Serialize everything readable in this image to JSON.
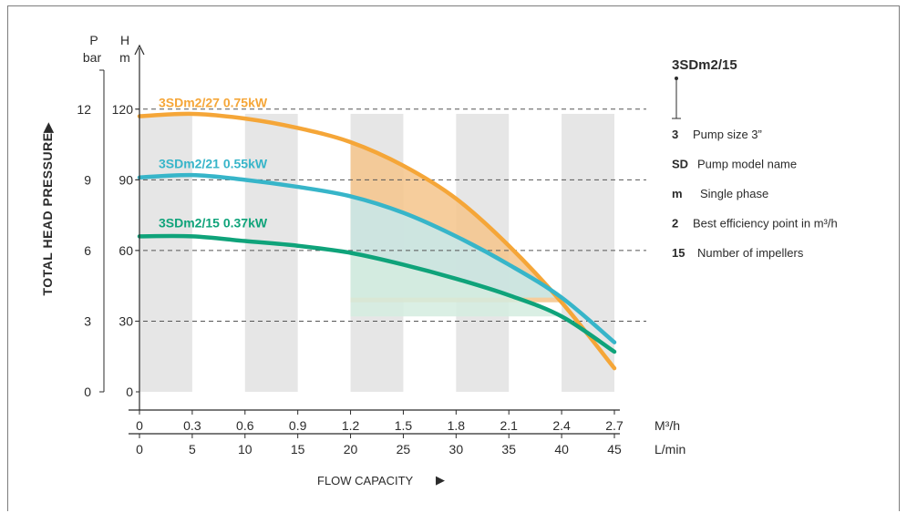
{
  "chart_data": {
    "type": "line",
    "x_flow_m3h": {
      "label": "M³/h",
      "ticks": [
        "0",
        "0.3",
        "0.6",
        "0.9",
        "1.2",
        "1.5",
        "1.8",
        "2.1",
        "2.4",
        "2.7"
      ],
      "range": [
        0,
        2.7
      ]
    },
    "x_flow_lmin": {
      "label": "L/min",
      "ticks": [
        "0",
        "5",
        "10",
        "15",
        "20",
        "25",
        "30",
        "35",
        "40",
        "45"
      ],
      "range": [
        0,
        45
      ]
    },
    "y_head_m": {
      "label_top": "H",
      "label_unit": "m",
      "ticks": [
        "0",
        "30",
        "60",
        "90",
        "120"
      ],
      "range": [
        0,
        135
      ]
    },
    "y_pressure_bar": {
      "label_top": "P",
      "label_unit": "bar",
      "ticks": [
        "0",
        "3",
        "6",
        "9",
        "12"
      ],
      "range": [
        0,
        13.5
      ]
    },
    "ylabel": "TOTAL HEAD PRESSURE",
    "xlabel": "FLOW CAPACITY",
    "dashed_gridlines_m": [
      30,
      60,
      90,
      120
    ],
    "shaded_columns_m3h": [
      [
        0,
        0.3
      ],
      [
        0.6,
        0.9
      ],
      [
        1.2,
        1.5
      ],
      [
        1.8,
        2.1
      ],
      [
        2.4,
        2.7
      ]
    ],
    "series": [
      {
        "name": "3SDm2/27 0.75kW",
        "color": "#f5a638",
        "x": [
          0,
          0.3,
          0.6,
          0.9,
          1.2,
          1.5,
          1.8,
          2.1,
          2.4,
          2.7
        ],
        "y": [
          117,
          118,
          116,
          112,
          106,
          96,
          82,
          62,
          38,
          10
        ],
        "efficiency_band": {
          "from_x": 1.2,
          "to_x": 2.4,
          "color": "#f5c48b"
        }
      },
      {
        "name": "3SDm2/21 0.55kW",
        "color": "#37b5c9",
        "x": [
          0,
          0.3,
          0.6,
          0.9,
          1.2,
          1.5,
          1.8,
          2.1,
          2.4,
          2.7
        ],
        "y": [
          91,
          92,
          90,
          87,
          83,
          76,
          66,
          54,
          40,
          21
        ],
        "efficiency_band": {
          "from_x": 1.2,
          "to_x": 2.4,
          "color": "#c6e9ec"
        }
      },
      {
        "name": "3SDm2/15 0.37kW",
        "color": "#0fa37a",
        "x": [
          0,
          0.3,
          0.6,
          0.9,
          1.2,
          1.5,
          1.8,
          2.1,
          2.4,
          2.7
        ],
        "y": [
          66,
          66,
          64,
          62,
          59,
          54,
          48,
          41,
          32,
          17
        ],
        "efficiency_band": {
          "from_x": 1.2,
          "to_x": 2.4,
          "color": "#d4ecdf"
        }
      }
    ]
  },
  "legend": {
    "title": "3SDm2/15",
    "items": [
      {
        "code": "3",
        "desc": "Pump size 3”"
      },
      {
        "code": "SD",
        "desc": "Pump model name"
      },
      {
        "code": "m",
        "desc": "Single phase"
      },
      {
        "code": "2",
        "desc": "Best efficiency point in m³/h"
      },
      {
        "code": "15",
        "desc": "Number of impellers"
      }
    ]
  },
  "colors": {
    "axis": "#2b2b2b",
    "grid_dash": "#555555",
    "column_shade": "#e6e6e6",
    "frame": "#7d7d7d"
  }
}
